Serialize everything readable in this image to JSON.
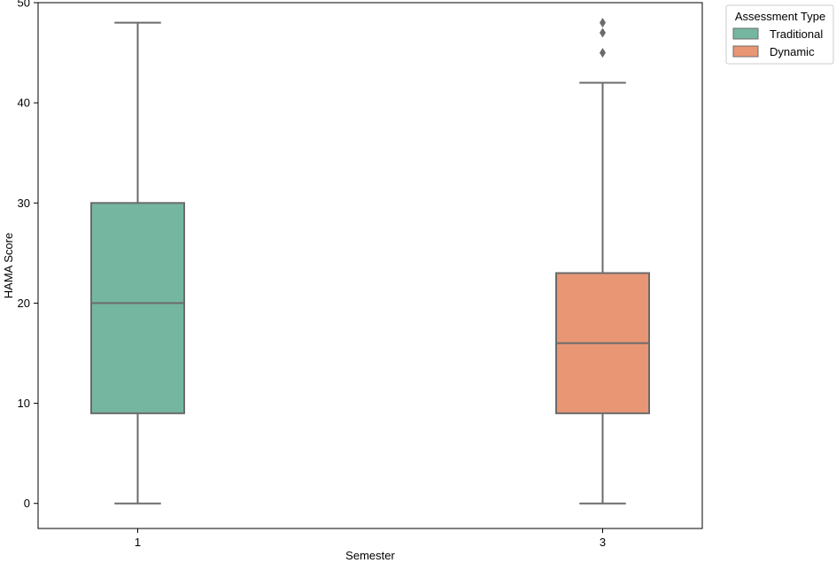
{
  "chart_data": {
    "type": "box",
    "xlabel": "Semester",
    "ylabel": "HAMA Score",
    "ylim": [
      -2.5,
      50
    ],
    "yticks": [
      0,
      10,
      20,
      30,
      40,
      50
    ],
    "grid": false,
    "legend": {
      "title": "Assessment Type",
      "placement": "outside-top-right",
      "entries": [
        {
          "name": "Traditional",
          "color": "#75b6a1"
        },
        {
          "name": "Dynamic",
          "color": "#e99675"
        }
      ]
    },
    "categories": [
      "1",
      "3"
    ],
    "boxes": [
      {
        "category": "1",
        "series": "Traditional",
        "color": "#75b6a1",
        "min": 0,
        "q1": 9,
        "median": 20,
        "q3": 30,
        "max": 48,
        "outliers": []
      },
      {
        "category": "3",
        "series": "Dynamic",
        "color": "#e99675",
        "min": 0,
        "q1": 9,
        "median": 16,
        "q3": 23,
        "max": 42,
        "outliers": [
          45,
          47,
          48
        ]
      }
    ],
    "line_color": "#6b6b6b"
  }
}
